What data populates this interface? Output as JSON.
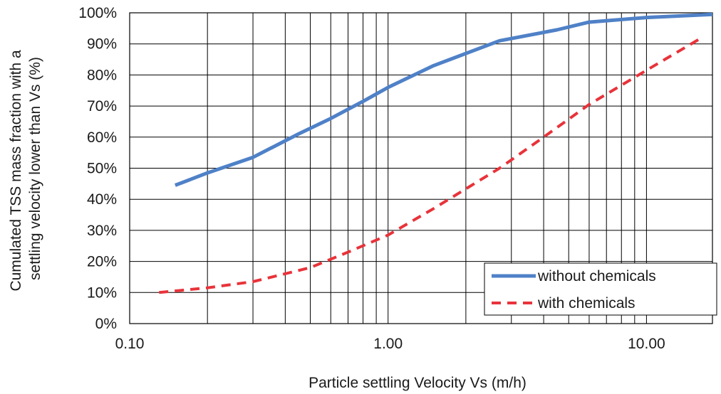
{
  "chart_data": {
    "type": "line",
    "title": "",
    "xlabel": "Particle settling Velocity Vs (m/h)",
    "ylabel_lines": [
      "Cumulated TSS mass fraction with a",
      "settling velocity lower than Vs (%)"
    ],
    "x_scale": "log",
    "xlim": [
      0.1,
      18
    ],
    "ylim": [
      0,
      100
    ],
    "x_ticks": [
      0.1,
      1,
      10
    ],
    "x_tick_labels": [
      "0.10",
      "1.00",
      "10.00"
    ],
    "y_ticks": [
      0,
      10,
      20,
      30,
      40,
      50,
      60,
      70,
      80,
      90,
      100
    ],
    "y_tick_labels": [
      "0%",
      "10%",
      "20%",
      "30%",
      "40%",
      "50%",
      "60%",
      "70%",
      "80%",
      "90%",
      "100%"
    ],
    "grid": "vertical minor log gridlines and horizontal major gridlines",
    "legend_position": "bottom-right",
    "series": [
      {
        "name": "without chemicals",
        "color": "#4f81c7",
        "dash": "solid",
        "x": [
          0.15,
          0.2,
          0.3,
          0.45,
          0.6,
          0.8,
          1.0,
          1.5,
          2.7,
          4.5,
          6.0,
          10.0,
          18.0
        ],
        "y": [
          44.5,
          48.5,
          53.5,
          61,
          66,
          71.5,
          76,
          83,
          91,
          94.5,
          97,
          98.5,
          99.5
        ]
      },
      {
        "name": "with chemicals",
        "color": "#e8333a",
        "dash": "dashed",
        "x": [
          0.13,
          0.2,
          0.3,
          0.5,
          0.7,
          1.0,
          1.5,
          2.7,
          4.0,
          6.0,
          10.0,
          16.0
        ],
        "y": [
          10,
          11.5,
          13.5,
          18,
          23,
          28.5,
          37,
          50,
          60,
          70.5,
          81.5,
          91.5
        ]
      }
    ]
  }
}
